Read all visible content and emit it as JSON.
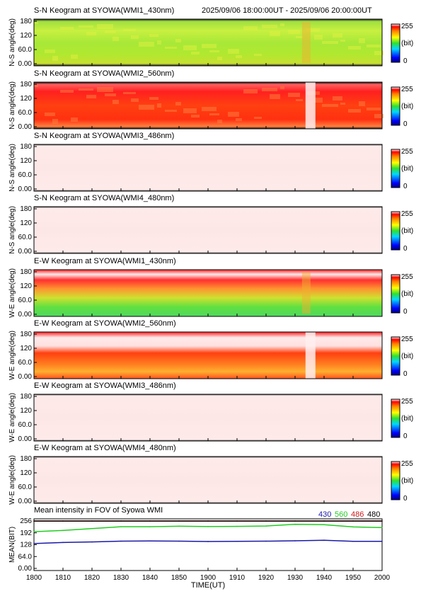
{
  "header": {
    "range_text": "2025/09/06 18:00:00UT - 2025/09/06 20:00:00UT"
  },
  "panels": [
    {
      "title": "S-N Keogram at SYOWA(WMI1_430nm)",
      "ylabel": "N-S angle(deg)",
      "yticks": [
        "180",
        "120",
        "60.0",
        "0.00"
      ],
      "cb_max": "255",
      "cb_unit": "(bit)",
      "cb_min": "0",
      "pattern": "green"
    },
    {
      "title": "S-N Keogram at SYOWA(WMI2_560nm)",
      "ylabel": "N-S angle(deg)",
      "yticks": [
        "180",
        "120",
        "60.0",
        "0.00"
      ],
      "cb_max": "255",
      "cb_unit": "(bit)",
      "cb_min": "0",
      "pattern": "red"
    },
    {
      "title": "S-N Keogram at SYOWA(WMI3_486nm)",
      "ylabel": "N-S angle(deg)",
      "yticks": [
        "180",
        "120",
        "60.0",
        "0.00"
      ],
      "cb_max": "255",
      "cb_unit": "(bit)",
      "cb_min": "0",
      "pattern": "sat"
    },
    {
      "title": "S-N Keogram at SYOWA(WMI4_480nm)",
      "ylabel": "N-S angle(deg)",
      "yticks": [
        "180",
        "120",
        "60.0",
        "0.00"
      ],
      "cb_max": "255",
      "cb_unit": "(bit)",
      "cb_min": "0",
      "pattern": "sat"
    },
    {
      "title": "E-W Keogram at SYOWA(WMI1_430nm)",
      "ylabel": "W-E angle(deg)",
      "yticks": [
        "180",
        "120",
        "60.0",
        "0.00"
      ],
      "cb_max": "255",
      "cb_unit": "(bit)",
      "cb_min": "0",
      "pattern": "ew1"
    },
    {
      "title": "E-W Keogram at SYOWA(WMI2_560nm)",
      "ylabel": "W-E angle(deg)",
      "yticks": [
        "180",
        "120",
        "60.0",
        "0.00"
      ],
      "cb_max": "255",
      "cb_unit": "(bit)",
      "cb_min": "0",
      "pattern": "ew2"
    },
    {
      "title": "E-W Keogram at SYOWA(WMI3_486nm)",
      "ylabel": "W-E angle(deg)",
      "yticks": [
        "180",
        "120",
        "60.0",
        "0.00"
      ],
      "cb_max": "255",
      "cb_unit": "(bit)",
      "cb_min": "0",
      "pattern": "sat"
    },
    {
      "title": "E-W Keogram at SYOWA(WMI4_480nm)",
      "ylabel": "W-E angle(deg)",
      "yticks": [
        "180",
        "120",
        "60.0",
        "0.00"
      ],
      "cb_max": "255",
      "cb_unit": "(bit)",
      "cb_min": "0",
      "pattern": "sat"
    }
  ],
  "mean_panel": {
    "title": "Mean intensity in FOV of Syowa WMI",
    "ylabel": "MEAN(BIT)",
    "yticks": [
      "256",
      "192",
      "128",
      "64.0",
      "0.00"
    ],
    "legend": [
      {
        "text": "430",
        "color": "#1a1aa8"
      },
      {
        "text": "560",
        "color": "#22cc22"
      },
      {
        "text": "486",
        "color": "#cc1a1a"
      },
      {
        "text": "480",
        "color": "#000000"
      }
    ]
  },
  "x_axis": {
    "label": "TIME(UT)",
    "ticks": [
      "1800",
      "1810",
      "1820",
      "1830",
      "1840",
      "1850",
      "1900",
      "1910",
      "1920",
      "1930",
      "1940",
      "1950",
      "2000"
    ]
  },
  "chart_data": {
    "type": "line",
    "title": "Mean intensity in FOV of Syowa WMI",
    "xlabel": "TIME(UT)",
    "ylabel": "MEAN(BIT)",
    "x": [
      0,
      10,
      20,
      30,
      40,
      50,
      60,
      70,
      80,
      90,
      100,
      110,
      120
    ],
    "x_tick_labels": [
      "1800",
      "1810",
      "1820",
      "1830",
      "1840",
      "1850",
      "1900",
      "1910",
      "1920",
      "1930",
      "1940",
      "1950",
      "2000"
    ],
    "ylim": [
      0,
      256
    ],
    "series": [
      {
        "name": "430",
        "color": "#1a1aa8",
        "values": [
          134,
          140,
          143,
          147,
          148,
          147,
          145,
          146,
          147,
          149,
          152,
          146,
          146
        ]
      },
      {
        "name": "560",
        "color": "#22cc22",
        "values": [
          198,
          205,
          215,
          225,
          225,
          228,
          226,
          227,
          229,
          238,
          236,
          224,
          220
        ]
      },
      {
        "name": "486",
        "color": "#cc1a1a",
        "values": [
          255,
          255,
          255,
          255,
          255,
          255,
          255,
          255,
          255,
          255,
          255,
          255,
          255
        ]
      },
      {
        "name": "480",
        "color": "#000000",
        "values": [
          256,
          256,
          256,
          256,
          256,
          256,
          256,
          256,
          256,
          256,
          256,
          256,
          256
        ]
      }
    ]
  }
}
